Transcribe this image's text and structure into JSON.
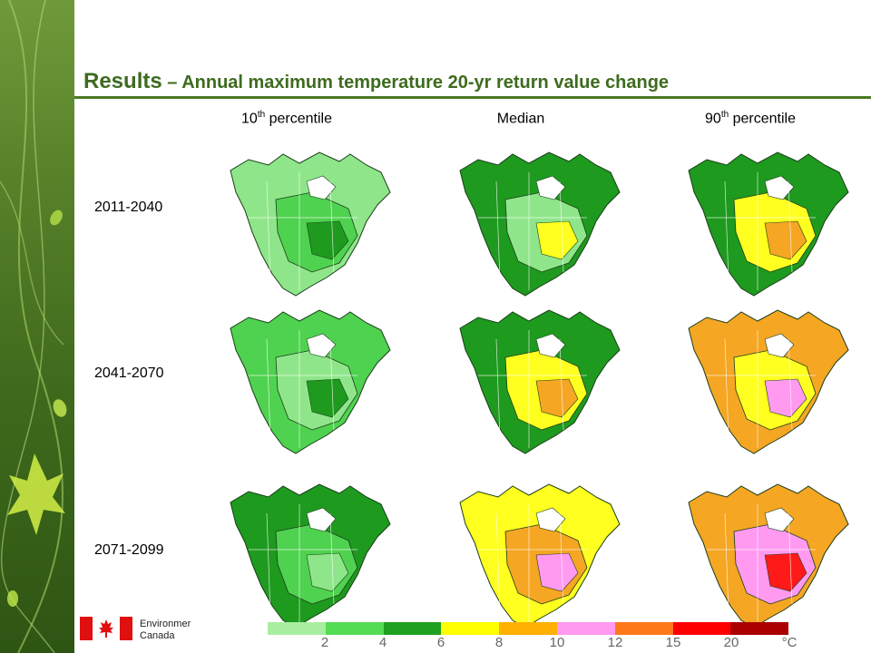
{
  "slide": {
    "title_lead": "Results",
    "title_rest": " – Annual maximum temperature 20-yr return value change"
  },
  "columns": [
    {
      "base": "10",
      "sup": "th",
      "rest": " percentile"
    },
    {
      "base": "Median",
      "sup": "",
      "rest": ""
    },
    {
      "base": "90",
      "sup": "th",
      "rest": " percentile"
    }
  ],
  "rows": [
    "2011-2040",
    "2041-2070",
    "2071-2099"
  ],
  "maps": [
    [
      "light-green",
      "green",
      "dark-green"
    ],
    [
      "dark-green",
      "light-green",
      "yellow"
    ],
    [
      "dark-green",
      "yellow",
      "orange"
    ],
    [
      "green",
      "light-green",
      "dark-green"
    ],
    [
      "dark-green",
      "yellow",
      "orange"
    ],
    [
      "orange",
      "yellow",
      "pink"
    ],
    [
      "dark-green",
      "green",
      "light-green"
    ],
    [
      "yellow",
      "orange",
      "pink"
    ],
    [
      "orange",
      "pink",
      "red"
    ]
  ],
  "legend": {
    "colors": [
      "#a8eea0",
      "#55dc55",
      "#1fa020",
      "#ffff00",
      "#ffb000",
      "#ff9af0",
      "#ff7818",
      "#ff0000",
      "#aa0000"
    ],
    "ticks": [
      "2",
      "4",
      "6",
      "8",
      "10",
      "12",
      "15",
      "20",
      "°C"
    ]
  },
  "logo": {
    "line1": "Environmer",
    "line2": "Canada"
  }
}
